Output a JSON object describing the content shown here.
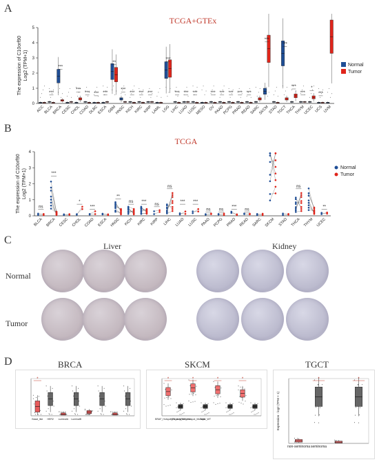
{
  "panels": {
    "a": {
      "label": "A",
      "title": "TCGA+GTEx"
    },
    "b": {
      "label": "B",
      "title": "TCGA"
    },
    "c": {
      "label": "C",
      "tissue_left": "Liver",
      "tissue_right": "Kidney",
      "row_normal": "Normal",
      "row_tumor": "Tumor"
    },
    "d": {
      "label": "D",
      "titles": [
        "BRCA",
        "SKCM",
        "TGCT"
      ]
    }
  },
  "colors": {
    "normal": "#1f4e96",
    "tumor": "#e0251b",
    "sig": "#c0392b"
  },
  "chart_data": [
    {
      "type": "box",
      "title": "TCGA+GTEx",
      "ylabel_line1": "The expression of C10orf90",
      "ylabel_line2": "Log2 (TPM+1)",
      "ylim": [
        0,
        5
      ],
      "yticks": [
        "0",
        "1",
        "2",
        "3",
        "4",
        "5"
      ],
      "legend": {
        "position": "right",
        "items": [
          "Normal",
          "Tumor"
        ]
      },
      "categories": [
        "ACC",
        "BLCA",
        "BRCA",
        "CESC",
        "CHOL",
        "COAD",
        "DLBC",
        "ESCA",
        "GBM",
        "HNSC",
        "KICH",
        "KIRC",
        "KIRP",
        "LAML",
        "LGG",
        "LIHC",
        "LUAD",
        "LUSC",
        "MESO",
        "OV",
        "PAAD",
        "PCPG",
        "PRAD",
        "READ",
        "SARC",
        "SKCM",
        "STAD",
        "TGCT",
        "THCA",
        "THYM",
        "UCEC",
        "UCS",
        "UVM"
      ],
      "series": [
        {
          "name": "Normal",
          "values": [
            0.05,
            0.1,
            1.8,
            0.05,
            0.05,
            0.1,
            0.05,
            0.05,
            2.1,
            0.3,
            0.1,
            0.1,
            0.1,
            0.05,
            2.2,
            0.1,
            0.1,
            0.1,
            0.05,
            0.1,
            0.1,
            0.1,
            0.1,
            0.1,
            0.1,
            0.8,
            0.1,
            3.3,
            0.1,
            0.1,
            0.1,
            0.05,
            0.05
          ]
        },
        {
          "name": "Tumor",
          "values": [
            0.05,
            0.05,
            0.2,
            0.1,
            0.3,
            0.05,
            0.05,
            0.1,
            1.9,
            0.1,
            0.05,
            0.05,
            0.1,
            0.05,
            2.3,
            0.05,
            0.1,
            0.05,
            0.05,
            0.05,
            0.05,
            0.05,
            0.05,
            0.05,
            0.3,
            3.6,
            0.05,
            0.3,
            0.5,
            0.1,
            0.4,
            0.05,
            4.4
          ]
        }
      ],
      "significance": [
        "",
        "***",
        "***",
        "",
        "***",
        "***",
        "***",
        "***",
        "**",
        "***",
        "***",
        "***",
        "***",
        "",
        "***",
        "***",
        "***",
        "***",
        "",
        "***",
        "***",
        "***",
        "***",
        "***",
        "",
        "***",
        "",
        "***",
        "***",
        "***",
        "*",
        "***",
        ""
      ]
    },
    {
      "type": "paired",
      "title": "TCGA",
      "ylabel_line1": "The expression of C10orf90",
      "ylabel_line2": "Log2 (TPM+1)",
      "ylim": [
        0,
        4
      ],
      "yticks": [
        "0",
        "1",
        "2",
        "3",
        "4"
      ],
      "legend": {
        "position": "right",
        "items": [
          "Normal",
          "Tumor"
        ]
      },
      "categories": [
        "BLCA",
        "BRCA",
        "CESC",
        "CHOL",
        "COAD",
        "ESCA",
        "HNSC",
        "KICH",
        "KIRC",
        "KIRP",
        "LIHC",
        "LUAD",
        "LUSC",
        "PAAD",
        "PCPG",
        "PRAD",
        "READ",
        "SARC",
        "SKCM",
        "STAD",
        "THCA",
        "THYM",
        "UCEC"
      ],
      "series": [
        {
          "name": "Normal",
          "values": [
            0.2,
            1.5,
            0.1,
            0.1,
            0.1,
            0.1,
            0.6,
            0.4,
            0.4,
            0.2,
            0.5,
            0.2,
            0.3,
            0.1,
            0.1,
            0.2,
            0.1,
            0.1,
            3.2,
            0.1,
            0.8,
            1.2,
            0.2
          ]
        },
        {
          "name": "Tumor",
          "values": [
            0.1,
            0.2,
            0.1,
            0.4,
            0.2,
            0.1,
            0.3,
            0.3,
            0.3,
            0.3,
            1.0,
            0.4,
            0.4,
            0.1,
            0.1,
            0.1,
            0.1,
            0.1,
            3.3,
            0.1,
            1.0,
            0.4,
            0.2
          ]
        }
      ],
      "significance": [
        "ns",
        "***",
        "",
        "*",
        "***",
        "",
        "**",
        "ns",
        "***",
        "ns",
        "ns",
        "***",
        "***",
        "ns",
        "ns",
        "***",
        "ns",
        "",
        "",
        "",
        "ns",
        "",
        "**"
      ]
    }
  ],
  "d_boxes": [
    {
      "xaxis": [
        "Basal_like",
        "HER2",
        "LuminalA",
        "LuminalB"
      ]
    },
    {
      "xaxis": [
        "BRAF_Hotspot_Mutants",
        "NF1_Any_Mutants",
        "RAS_Hotspot_Mutants",
        "Triple_WT"
      ]
    },
    {
      "xaxis": [
        "non-seminoma",
        "seminoma"
      ],
      "ylabel": "Expression - log2 (TPM + 1)"
    }
  ]
}
